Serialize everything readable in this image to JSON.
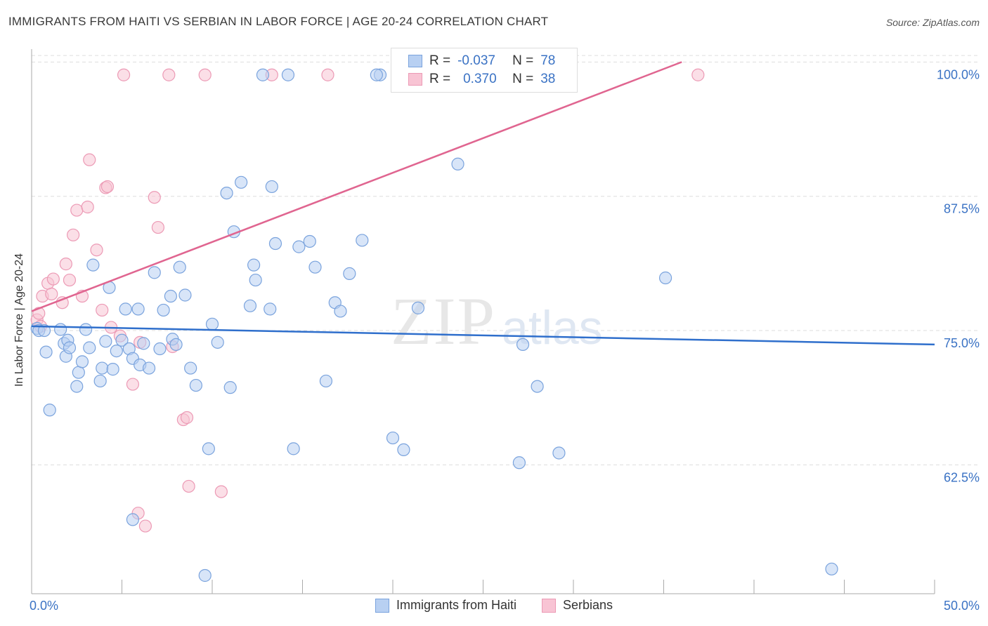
{
  "header": {
    "title": "IMMIGRANTS FROM HAITI VS SERBIAN IN LABOR FORCE | AGE 20-24 CORRELATION CHART",
    "source": "Source: ZipAtlas.com"
  },
  "watermark": {
    "zip": "ZIP",
    "atlas": "atlas"
  },
  "legend": {
    "rows": [
      {
        "r_label": "R =",
        "r_value": "-0.037",
        "n_label": "N =",
        "n_value": "78"
      },
      {
        "r_label": "R =",
        "r_value": "0.370",
        "n_label": "N =",
        "n_value": "38"
      }
    ]
  },
  "colors": {
    "haiti_fill": "#b8d0f2",
    "haiti_stroke": "#7aa3dd",
    "haiti_line": "#2f6fcc",
    "serb_fill": "#f8c4d4",
    "serb_stroke": "#ec9ab5",
    "serb_line": "#e06590",
    "axis_label": "#3a72c4",
    "grid": "#dddddd"
  },
  "chart_data": {
    "type": "scatter",
    "title": "IMMIGRANTS FROM HAITI VS SERBIAN IN LABOR FORCE | AGE 20-24 CORRELATION CHART",
    "xlabel": "",
    "ylabel": "In Labor Force | Age 20-24",
    "xlim": [
      0,
      50
    ],
    "ylim": [
      50.5,
      101.2
    ],
    "x_tick_labels": [
      "0.0%",
      "50.0%"
    ],
    "y_ticks": [
      62.5,
      75.0,
      87.5,
      100.0
    ],
    "y_tick_labels": [
      "62.5%",
      "75.0%",
      "87.5%",
      "100.0%"
    ],
    "grid": true,
    "series": [
      {
        "name": "Immigrants from Haiti",
        "r": -0.037,
        "n": 78,
        "trend": [
          [
            0.0,
            75.4
          ],
          [
            50.0,
            73.7
          ]
        ],
        "points": [
          [
            0.3,
            75.2
          ],
          [
            0.4,
            75.0
          ],
          [
            0.7,
            75.0
          ],
          [
            0.8,
            73.0
          ],
          [
            1.0,
            67.6
          ],
          [
            1.6,
            75.1
          ],
          [
            1.8,
            73.8
          ],
          [
            1.9,
            72.6
          ],
          [
            2.0,
            74.1
          ],
          [
            2.1,
            73.4
          ],
          [
            2.5,
            69.8
          ],
          [
            2.6,
            71.1
          ],
          [
            2.8,
            72.1
          ],
          [
            3.0,
            75.1
          ],
          [
            3.2,
            73.4
          ],
          [
            3.4,
            81.1
          ],
          [
            3.8,
            70.3
          ],
          [
            3.9,
            71.5
          ],
          [
            4.1,
            74.0
          ],
          [
            4.3,
            79.0
          ],
          [
            4.5,
            71.4
          ],
          [
            4.7,
            73.1
          ],
          [
            5.0,
            74.1
          ],
          [
            5.2,
            77.0
          ],
          [
            5.4,
            73.3
          ],
          [
            5.6,
            72.4
          ],
          [
            5.9,
            77.0
          ],
          [
            6.0,
            71.8
          ],
          [
            6.2,
            73.8
          ],
          [
            6.5,
            71.5
          ],
          [
            6.8,
            80.4
          ],
          [
            7.1,
            73.3
          ],
          [
            7.3,
            76.9
          ],
          [
            7.7,
            78.2
          ],
          [
            7.8,
            74.2
          ],
          [
            8.0,
            73.7
          ],
          [
            8.2,
            80.9
          ],
          [
            8.5,
            78.3
          ],
          [
            8.8,
            71.5
          ],
          [
            9.1,
            69.9
          ],
          [
            9.6,
            52.2
          ],
          [
            9.8,
            64.0
          ],
          [
            10.0,
            75.6
          ],
          [
            10.3,
            73.9
          ],
          [
            10.8,
            87.8
          ],
          [
            11.0,
            69.7
          ],
          [
            11.2,
            84.2
          ],
          [
            11.6,
            88.8
          ],
          [
            12.1,
            77.3
          ],
          [
            12.3,
            81.1
          ],
          [
            12.4,
            79.7
          ],
          [
            12.8,
            98.8
          ],
          [
            13.3,
            88.4
          ],
          [
            13.2,
            77.0
          ],
          [
            13.5,
            83.1
          ],
          [
            14.2,
            98.8
          ],
          [
            14.5,
            64.0
          ],
          [
            14.8,
            82.8
          ],
          [
            15.4,
            83.3
          ],
          [
            15.7,
            80.9
          ],
          [
            16.3,
            70.3
          ],
          [
            16.8,
            77.6
          ],
          [
            17.1,
            76.8
          ],
          [
            17.6,
            80.3
          ],
          [
            18.3,
            83.4
          ],
          [
            19.3,
            98.8
          ],
          [
            19.1,
            98.8
          ],
          [
            20.0,
            65.0
          ],
          [
            20.6,
            63.9
          ],
          [
            21.4,
            77.1
          ],
          [
            23.6,
            90.5
          ],
          [
            27.0,
            62.7
          ],
          [
            27.2,
            73.7
          ],
          [
            28.0,
            69.8
          ],
          [
            29.2,
            63.6
          ],
          [
            35.1,
            79.9
          ],
          [
            44.3,
            52.8
          ],
          [
            5.6,
            57.4
          ]
        ]
      },
      {
        "name": "Serbians",
        "r": 0.37,
        "n": 38,
        "trend": [
          [
            0.0,
            76.8
          ],
          [
            36.0,
            100.0
          ]
        ],
        "points": [
          [
            0.3,
            76.0
          ],
          [
            0.4,
            76.6
          ],
          [
            0.5,
            75.4
          ],
          [
            0.6,
            78.2
          ],
          [
            0.9,
            79.4
          ],
          [
            1.1,
            78.4
          ],
          [
            1.2,
            79.8
          ],
          [
            1.7,
            77.6
          ],
          [
            1.9,
            81.2
          ],
          [
            2.1,
            79.7
          ],
          [
            2.3,
            83.9
          ],
          [
            2.5,
            86.2
          ],
          [
            2.8,
            78.2
          ],
          [
            3.1,
            86.5
          ],
          [
            3.2,
            90.9
          ],
          [
            3.6,
            82.5
          ],
          [
            3.9,
            76.9
          ],
          [
            4.1,
            88.3
          ],
          [
            4.2,
            88.4
          ],
          [
            4.4,
            75.3
          ],
          [
            4.9,
            74.5
          ],
          [
            5.1,
            98.8
          ],
          [
            5.6,
            70.0
          ],
          [
            5.9,
            58.0
          ],
          [
            6.0,
            73.9
          ],
          [
            6.3,
            56.8
          ],
          [
            6.8,
            87.4
          ],
          [
            7.0,
            84.6
          ],
          [
            7.6,
            98.8
          ],
          [
            7.8,
            73.5
          ],
          [
            8.4,
            66.7
          ],
          [
            8.6,
            66.9
          ],
          [
            8.7,
            60.5
          ],
          [
            9.6,
            98.8
          ],
          [
            10.5,
            60.0
          ],
          [
            13.3,
            98.8
          ],
          [
            16.4,
            98.8
          ],
          [
            36.9,
            98.8
          ]
        ]
      }
    ]
  },
  "bottom_legend": {
    "haiti_label": "Immigrants from Haiti",
    "serb_label": "Serbians"
  }
}
